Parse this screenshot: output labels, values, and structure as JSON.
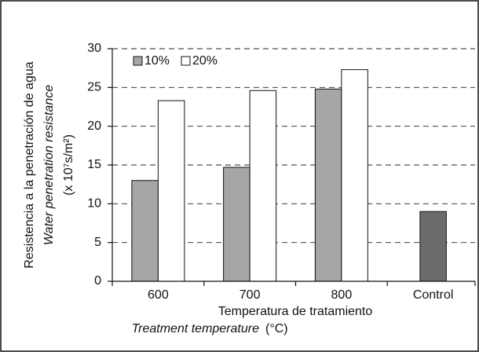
{
  "chart_data": {
    "type": "bar",
    "ylabel": [
      "Resistencia a la penetración de agua",
      "Water penetration resistance",
      "(x 10⁷s/m²)"
    ],
    "xlabel": [
      "Temperatura de tratamiento",
      "Treatment temperature",
      "(°C)"
    ],
    "categories": [
      "600",
      "700",
      "800",
      "Control"
    ],
    "series": [
      {
        "name": "10%",
        "color": "#a6a6a6",
        "values": [
          13,
          14.7,
          24.8,
          null
        ]
      },
      {
        "name": "20%",
        "color": "#ffffff",
        "values": [
          23.3,
          24.6,
          27.3,
          null
        ]
      },
      {
        "color": "#6b6b6b",
        "values": [
          null,
          null,
          null,
          9
        ]
      }
    ],
    "ylim": [
      0,
      30
    ],
    "yticks": [
      0,
      5,
      10,
      15,
      20,
      25,
      30
    ],
    "grid": true
  }
}
